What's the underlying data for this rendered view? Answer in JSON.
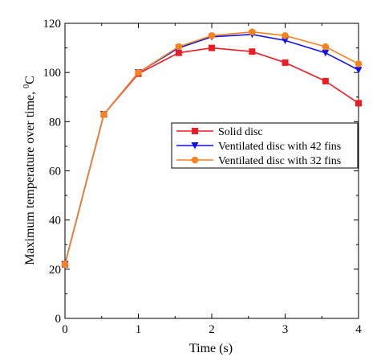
{
  "chart_data": {
    "type": "line",
    "title": "",
    "xlabel": "Time (s)",
    "ylabel": {
      "main": "Maximum temperature over time, ",
      "superscript": "0",
      "unit": "C"
    },
    "xlim": [
      0,
      4
    ],
    "ylim": [
      0,
      120
    ],
    "xticks": [
      "0",
      "1",
      "2",
      "3",
      "4"
    ],
    "yticks": [
      "0",
      "20",
      "40",
      "60",
      "80",
      "100",
      "120"
    ],
    "grid": false,
    "legend_position": "center-right",
    "series": [
      {
        "name": "Solid disc",
        "color": "#ee1c24",
        "marker": "square",
        "x": [
          0,
          0.53,
          1,
          1.55,
          2,
          2.55,
          3,
          3.55,
          4
        ],
        "y": [
          22,
          83,
          99.5,
          108,
          110,
          108.5,
          104,
          96.5,
          87.5
        ]
      },
      {
        "name": "Ventilated disc with 42 fins",
        "color": "#1010ee",
        "marker": "triangle-down",
        "x": [
          0,
          0.53,
          1,
          1.55,
          2,
          2.55,
          3,
          3.55,
          4
        ],
        "y": [
          22,
          83,
          100,
          110,
          114.5,
          115.5,
          113,
          108,
          101
        ]
      },
      {
        "name": "Ventilated disc with 32 fins",
        "color": "#f7821e",
        "marker": "circle",
        "x": [
          0,
          0.53,
          1,
          1.55,
          2,
          2.55,
          3,
          3.55,
          4
        ],
        "y": [
          22,
          83,
          100,
          110.5,
          115,
          116.5,
          115,
          110.5,
          103.5
        ]
      }
    ]
  }
}
